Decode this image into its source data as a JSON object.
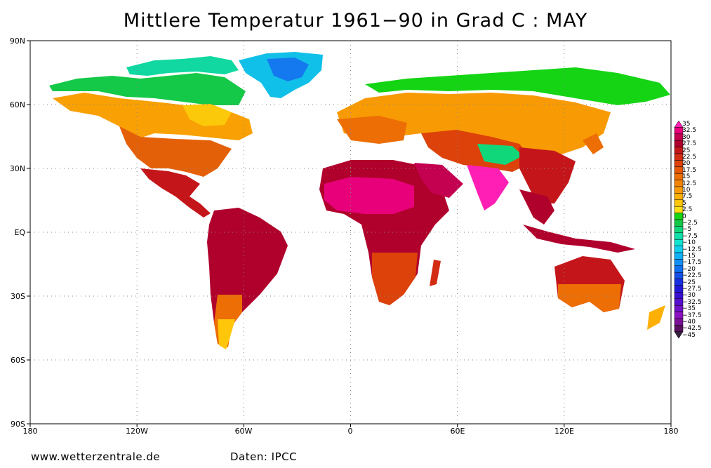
{
  "title": "Mittlere Temperatur 1961−90 in Grad C : MAY",
  "footer": {
    "source_url": "www.wetterzentrale.de",
    "data_credit": "Daten: IPCC"
  },
  "axes": {
    "y_labels": [
      "90N",
      "60N",
      "30N",
      "EQ",
      "30S",
      "60S",
      "90S"
    ],
    "x_labels": [
      "180",
      "120W",
      "60W",
      "0",
      "60E",
      "120E",
      "180"
    ]
  },
  "legend": {
    "labels": [
      "35",
      "32.5",
      "30",
      "27.5",
      "25",
      "22.5",
      "20",
      "17.5",
      "15",
      "12.5",
      "10",
      "7.5",
      "5",
      "2.5",
      "0",
      "−2.5",
      "−5",
      "−7.5",
      "−10",
      "−12.5",
      "−15",
      "−17.5",
      "−20",
      "−22.5",
      "−25",
      "−27.5",
      "−30",
      "−32.5",
      "−35",
      "−37.5",
      "−40",
      "−42.5",
      "−45"
    ],
    "colors": [
      "#ff1fb4",
      "#e8007a",
      "#c40050",
      "#b0002c",
      "#c2161a",
      "#d22c12",
      "#dc420a",
      "#e45806",
      "#ec6e04",
      "#f28404",
      "#f89a04",
      "#fcb006",
      "#ffc60a",
      "#ffdc14",
      "#14d414",
      "#12c844",
      "#10d87a",
      "#10e0aa",
      "#10e4d0",
      "#10d0ee",
      "#10b0f4",
      "#1090f4",
      "#1070f0",
      "#1450e8",
      "#1830e0",
      "#2418d8",
      "#3a10d0",
      "#5610cc",
      "#7010c8",
      "#8a10c0",
      "#7a1098",
      "#5a1060",
      "#382040"
    ]
  }
}
